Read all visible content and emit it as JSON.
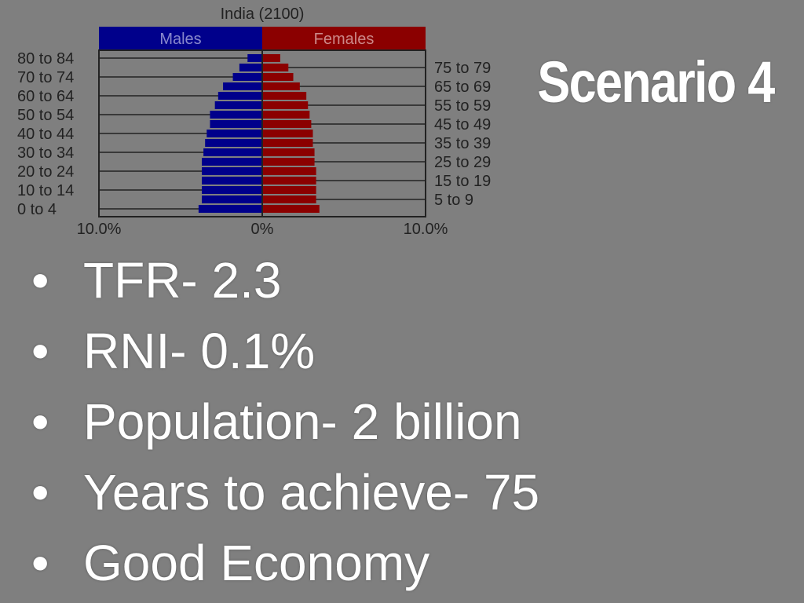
{
  "slide": {
    "title": "Scenario 4",
    "bullets": [
      "TFR- 2.3",
      "RNI- 0.1%",
      "Population- 2 billion",
      "Years to achieve- 75",
      "Good Economy"
    ]
  },
  "chart_data": {
    "type": "bar",
    "orientation": "horizontal-pyramid",
    "title": "India (2100)",
    "legend": [
      "Males",
      "Females"
    ],
    "colors": {
      "Males": "#00008b",
      "Females": "#8b0000"
    },
    "categories": [
      "80 to 84",
      "75 to 79",
      "70 to 74",
      "65 to 69",
      "60 to 64",
      "55 to 59",
      "50 to 54",
      "45 to 49",
      "40 to 44",
      "35 to 39",
      "30 to 34",
      "25 to 29",
      "20 to 24",
      "15 to 19",
      "10 to 14",
      "5 to 9",
      "0 to 4"
    ],
    "left_labels": [
      "80 to 84",
      "70 to 74",
      "60 to 64",
      "50 to 54",
      "40 to 44",
      "30 to 34",
      "20 to 24",
      "10 to 14",
      "0 to 4"
    ],
    "right_labels": [
      "75 to 79",
      "65 to 69",
      "55 to 59",
      "45 to 49",
      "35 to 39",
      "25 to 29",
      "15 to 19",
      "5 to 9"
    ],
    "series": [
      {
        "name": "Males",
        "values": [
          0.9,
          1.4,
          1.8,
          2.4,
          2.7,
          2.9,
          3.2,
          3.2,
          3.4,
          3.5,
          3.6,
          3.7,
          3.7,
          3.7,
          3.7,
          3.7,
          3.9
        ]
      },
      {
        "name": "Females",
        "values": [
          1.1,
          1.6,
          1.9,
          2.3,
          2.7,
          2.8,
          2.9,
          3.0,
          3.1,
          3.1,
          3.2,
          3.2,
          3.3,
          3.3,
          3.3,
          3.3,
          3.5
        ]
      }
    ],
    "xlim": [
      -10,
      10
    ],
    "x_ticks": [
      "10.0%",
      "0%",
      "10.0%"
    ],
    "units": "%"
  }
}
